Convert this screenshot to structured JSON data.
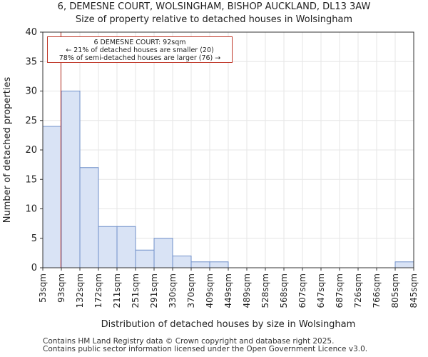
{
  "title_line1": "6, DEMESNE COURT, WOLSINGHAM, BISHOP AUCKLAND, DL13 3AW",
  "title_line2": "Size of property relative to detached houses in Wolsingham",
  "annotation": {
    "line1": "6 DEMESNE COURT: 92sqm",
    "line2": "← 21% of detached houses are smaller (20)",
    "line3": "78% of semi-detached houses are larger (76) →"
  },
  "footer_line1": "Contains HM Land Registry data © Crown copyright and database right 2025.",
  "footer_line2": "Contains public sector information licensed under the Open Government Licence v3.0.",
  "colors": {
    "bar_fill": "#d9e3f5",
    "bar_edge": "#6f8fc9",
    "marker": "#c0392b"
  },
  "chart_data": {
    "type": "bar",
    "title": "Size of property relative to detached houses in Wolsingham",
    "xlabel": "Distribution of detached houses by size in Wolsingham",
    "ylabel": "Number of detached properties",
    "ylim": [
      0,
      40
    ],
    "yticks": [
      0,
      5,
      10,
      15,
      20,
      25,
      30,
      35,
      40
    ],
    "bin_edges": [
      "53sqm",
      "93sqm",
      "132sqm",
      "172sqm",
      "211sqm",
      "251sqm",
      "291sqm",
      "330sqm",
      "370sqm",
      "409sqm",
      "449sqm",
      "489sqm",
      "528sqm",
      "568sqm",
      "607sqm",
      "647sqm",
      "687sqm",
      "726sqm",
      "766sqm",
      "805sqm",
      "845sqm"
    ],
    "values": [
      24,
      30,
      17,
      7,
      7,
      3,
      5,
      2,
      1,
      1,
      0,
      0,
      0,
      0,
      0,
      0,
      0,
      0,
      0,
      1
    ],
    "marker_value_sqm": 92,
    "marker_label": "6 DEMESNE COURT: 92sqm"
  }
}
